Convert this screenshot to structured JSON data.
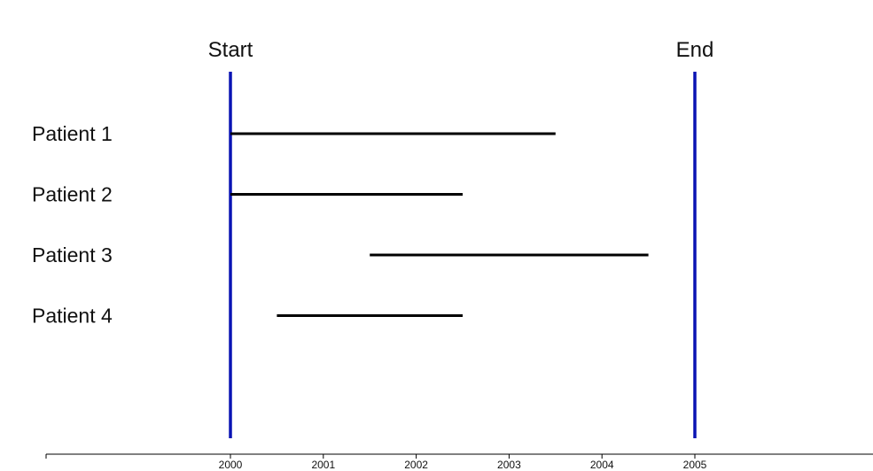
{
  "chart_data": {
    "type": "timeline",
    "title": "",
    "xlabel": "",
    "ylabel": "",
    "xlim": [
      1998,
      2006.9
    ],
    "x_ticks": [
      "2000",
      "2001",
      "2002",
      "2003",
      "2004",
      "2005"
    ],
    "grid": false,
    "legend": "none",
    "markers": [
      {
        "label": "Start",
        "x": 2000,
        "color": "#0a14b4"
      },
      {
        "label": "End",
        "x": 2005,
        "color": "#0a14b4"
      }
    ],
    "series": [
      {
        "label": "Patient 1",
        "start": 2000.0,
        "end": 2003.5
      },
      {
        "label": "Patient 2",
        "start": 2000.0,
        "end": 2002.5
      },
      {
        "label": "Patient 3",
        "start": 2001.5,
        "end": 2004.5
      },
      {
        "label": "Patient 4",
        "start": 2000.5,
        "end": 2002.5
      }
    ],
    "bar_color": "#000000"
  }
}
